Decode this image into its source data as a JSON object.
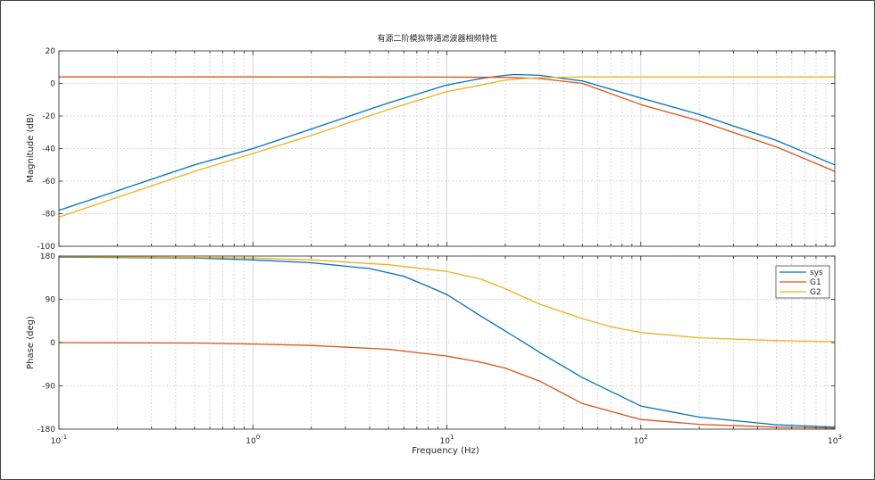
{
  "title": "有源二阶模拟带通滤波器相频特性",
  "colors": {
    "sys": "#0072bd",
    "G1": "#d95319",
    "G2": "#edb120",
    "grid": "#d9d9d9",
    "frame": "#262626"
  },
  "chart_data": [
    {
      "type": "line",
      "panel": "magnitude",
      "xscale": "log",
      "xlim": [
        0.1,
        1000
      ],
      "ylim": [
        -100,
        20
      ],
      "ylabel": "Magnitude (dB)",
      "yticks": [
        20,
        0,
        -20,
        -40,
        -60,
        -80,
        -100
      ],
      "ytick_labels": [
        "20",
        "0",
        "-20",
        "-40",
        "-60",
        "-80",
        "-100"
      ],
      "grid": true,
      "series": [
        {
          "name": "sys",
          "x": [
            0.1,
            0.2,
            0.5,
            1,
            2,
            5,
            10,
            15,
            20,
            22.4,
            30,
            50,
            100,
            200,
            500,
            1000
          ],
          "y": [
            -78,
            -66,
            -50,
            -40,
            -28,
            -12,
            -1,
            3,
            5,
            5.5,
            5,
            1.5,
            -9,
            -19,
            -35,
            -50
          ]
        },
        {
          "name": "G1",
          "x": [
            0.1,
            1,
            10,
            20,
            25,
            30,
            50,
            100,
            200,
            500,
            1000
          ],
          "y": [
            4,
            4,
            3.9,
            3.7,
            3.4,
            3,
            0,
            -13,
            -23,
            -39,
            -54
          ]
        },
        {
          "name": "G2",
          "x": [
            0.1,
            0.2,
            0.5,
            1,
            2,
            5,
            10,
            15,
            20,
            25,
            30,
            50,
            100,
            1000
          ],
          "y": [
            -82,
            -70,
            -54,
            -43,
            -32,
            -16,
            -5,
            -1,
            2,
            3,
            3.5,
            4,
            4,
            4
          ]
        }
      ]
    },
    {
      "type": "line",
      "panel": "phase",
      "xscale": "log",
      "xlim": [
        0.1,
        1000
      ],
      "ylim": [
        -180,
        180
      ],
      "xlabel": "Frequency  (Hz)",
      "ylabel": "Phase (deg)",
      "yticks": [
        180,
        90,
        0,
        -90,
        -180
      ],
      "ytick_labels": [
        "180",
        "90",
        "0",
        "-90",
        "-180"
      ],
      "xticks": [
        0.1,
        1,
        10,
        100,
        1000
      ],
      "xtick_base": "10",
      "xtick_exponents": [
        "-1",
        "0",
        "1",
        "2",
        "3"
      ],
      "grid": true,
      "legend_position": "top-right",
      "legend": [
        "sys",
        "G1",
        "G2"
      ],
      "series": [
        {
          "name": "sys",
          "x": [
            0.1,
            0.5,
            1,
            2,
            4,
            6,
            8,
            10,
            15,
            20,
            22.4,
            30,
            50,
            100,
            200,
            500,
            1000
          ],
          "y": [
            178,
            176,
            172,
            166,
            154,
            138,
            117,
            100,
            55,
            24,
            12,
            -20,
            -73,
            -132,
            -155,
            -171,
            -176
          ]
        },
        {
          "name": "G1",
          "x": [
            0.1,
            0.5,
            1,
            2,
            5,
            10,
            15,
            20,
            30,
            50,
            100,
            200,
            500,
            1000
          ],
          "y": [
            0,
            -1,
            -3,
            -6,
            -14,
            -28,
            -41,
            -53,
            -80,
            -127,
            -160,
            -170,
            -176,
            -178
          ]
        },
        {
          "name": "G2",
          "x": [
            0.1,
            0.5,
            1,
            2,
            5,
            10,
            15,
            20,
            30,
            40,
            50,
            70,
            100,
            200,
            500,
            1000
          ],
          "y": [
            179,
            177,
            176,
            172,
            162,
            148,
            132,
            112,
            80,
            63,
            50,
            33,
            21,
            10,
            4,
            2
          ]
        }
      ]
    }
  ]
}
